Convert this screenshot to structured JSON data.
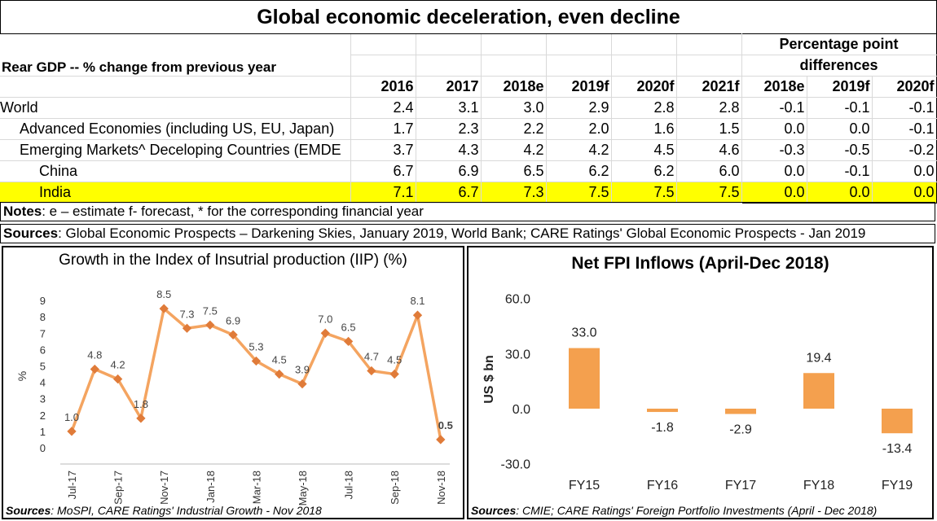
{
  "title": "Global economic deceleration, even decline",
  "table": {
    "row_label_header": "Rear GDP -- % change from previous year",
    "pp_header": [
      "Percentage point",
      "differences"
    ],
    "years": [
      "2016",
      "2017",
      "2018e",
      "2019f",
      "2020f",
      "2021f"
    ],
    "pp_years": [
      "2018e",
      "2019f",
      "2020f"
    ],
    "rows": [
      {
        "label": "World",
        "values": [
          "2.4",
          "3.1",
          "3.0",
          "2.9",
          "2.8",
          "2.8"
        ],
        "pp": [
          "-0.1",
          "-0.1",
          "-0.1"
        ]
      },
      {
        "label": "Advanced Economies (including US, EU, Japan)",
        "values": [
          "1.7",
          "2.3",
          "2.2",
          "2.0",
          "1.6",
          "1.5"
        ],
        "pp": [
          "0.0",
          "0.0",
          "-0.1"
        ]
      },
      {
        "label": "Emerging Markets^ Deceloping Countries (EMDE",
        "values": [
          "3.7",
          "4.3",
          "4.2",
          "4.2",
          "4.5",
          "4.6"
        ],
        "pp": [
          "-0.3",
          "-0.5",
          "-0.2"
        ]
      },
      {
        "label": "China",
        "values": [
          "6.7",
          "6.9",
          "6.5",
          "6.2",
          "6.2",
          "6.0"
        ],
        "pp": [
          "0.0",
          "-0.1",
          "0.0"
        ]
      },
      {
        "label": "India",
        "values": [
          "7.1",
          "6.7",
          "7.3",
          "7.5",
          "7.5",
          "7.5"
        ],
        "pp": [
          "0.0",
          "0.0",
          "0.0"
        ]
      }
    ],
    "highlight_color": "#ffff00"
  },
  "notes": {
    "notes_label": "Notes",
    "notes_text": ": e – estimate f- forecast, * for the corresponding financial year",
    "sources_label": "Sources",
    "sources_text": ": Global Economic Prospects – Darkening Skies, January 2019, World Bank; CARE Ratings' Global Economic Prospects - Jan 2019"
  },
  "chart_data": [
    {
      "type": "line",
      "title": "Growth in the Index of Insutrial production (IIP) (%)",
      "ylabel": "%",
      "ylim": [
        0,
        9
      ],
      "yticks": [
        "0",
        "1",
        "2",
        "3",
        "4",
        "5",
        "6",
        "7",
        "8",
        "9"
      ],
      "x": [
        "Jul-17",
        "Aug-17",
        "Sep-17",
        "Oct-17",
        "Nov-17",
        "Dec-17",
        "Jan-18",
        "Feb-18",
        "Mar-18",
        "Apr-18",
        "May-18",
        "Jun-18",
        "Jul-18",
        "Aug-18",
        "Sep-18",
        "Oct-18",
        "Nov-18"
      ],
      "x_tick_labels": [
        "Jul-17",
        "Sep-17",
        "Nov-17",
        "Jan-18",
        "Mar-18",
        "May-18",
        "Jul-18",
        "Sep-18",
        "Nov-18"
      ],
      "values": [
        1.0,
        4.8,
        4.2,
        1.8,
        8.5,
        7.3,
        7.5,
        6.9,
        5.3,
        4.5,
        3.9,
        7.0,
        6.5,
        4.7,
        4.5,
        8.1,
        0.5
      ],
      "data_labels": [
        "1.0",
        "4.8",
        "4.2",
        "1.8",
        "8.5",
        "7.3",
        "7.5",
        "6.9",
        "5.3",
        "4.5",
        "3.9",
        "7.0",
        "6.5",
        "4.7",
        "4.5",
        "8.1",
        "0.5"
      ],
      "color": "#f4a460",
      "marker_color": "#e07b39",
      "source_label": "Sources",
      "source_text": ": MoSPI, CARE Ratings' Industrial Growth - Nov 2018"
    },
    {
      "type": "bar",
      "title": "Net FPI Inflows (April-Dec 2018)",
      "ylabel": "US $ bn",
      "ylim": [
        -30,
        60
      ],
      "yticks": [
        "-30.0",
        "0.0",
        "30.0",
        "60.0"
      ],
      "categories": [
        "FY15",
        "FY16",
        "FY17",
        "FY18",
        "FY19"
      ],
      "values": [
        33.0,
        -1.8,
        -2.9,
        19.4,
        -13.4
      ],
      "data_labels": [
        "33.0",
        "-1.8",
        "-2.9",
        "19.4",
        "-13.4"
      ],
      "color": "#f4a04e",
      "source_label": "Sources",
      "source_text": ": CMIE; CARE Ratings' Foreign Portfolio Investments (April - Dec 2018)"
    }
  ]
}
